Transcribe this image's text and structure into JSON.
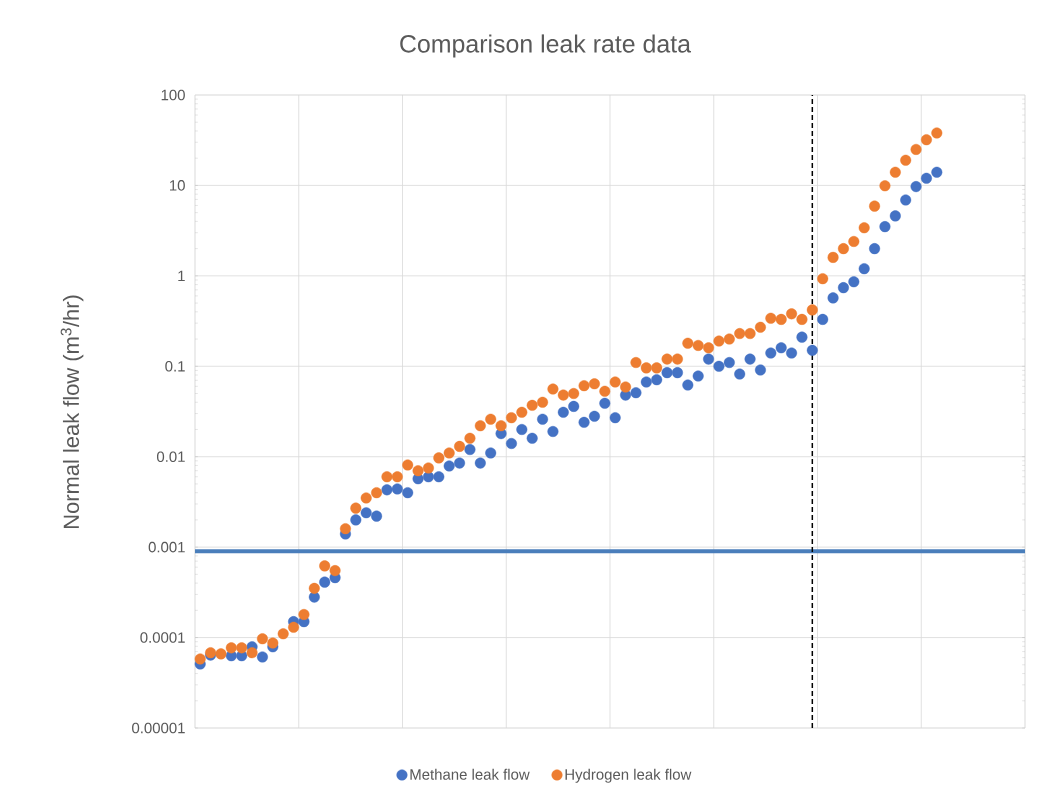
{
  "chart_data": {
    "type": "scatter",
    "title": "Comparison leak rate data",
    "ylabel": "Normal leak flow (m$^{3}$/hr)",
    "categories": [
      null,
      null,
      null,
      null,
      null,
      null,
      null,
      null,
      null,
      null,
      null,
      null,
      null,
      null,
      null,
      null,
      null,
      null,
      null,
      null,
      null,
      null,
      null,
      null,
      null,
      null,
      null,
      null,
      null,
      null,
      null,
      null,
      null,
      null,
      null,
      null,
      null,
      null,
      null,
      null,
      null,
      null,
      null,
      null,
      null,
      null,
      null,
      null,
      null,
      null,
      null,
      null,
      null,
      null,
      null,
      null,
      null,
      null,
      null,
      null,
      null,
      null,
      null,
      null,
      null,
      null,
      null,
      null,
      null,
      null,
      null,
      null,
      null,
      null,
      null,
      null,
      null,
      null,
      null,
      null
    ],
    "series": [
      {
        "name": "Methane leak flow",
        "color": "#4472c4",
        "values": [
          5.1e-05,
          6.4e-05,
          null,
          6.3e-05,
          6.3e-05,
          7.9e-05,
          6.1e-05,
          7.9e-05,
          null,
          0.00015,
          0.00015,
          0.00028,
          0.00041,
          0.00046,
          0.0014,
          0.002,
          0.0024,
          0.0022,
          0.0043,
          0.0044,
          0.004,
          0.0057,
          0.006,
          0.006,
          0.0079,
          0.0085,
          0.012,
          0.0085,
          0.011,
          0.018,
          0.014,
          0.02,
          0.016,
          0.026,
          0.019,
          0.031,
          0.036,
          0.024,
          0.028,
          0.039,
          0.027,
          0.048,
          0.051,
          0.067,
          0.071,
          0.085,
          0.085,
          0.062,
          0.078,
          0.12,
          0.1,
          0.11,
          0.082,
          0.12,
          0.091,
          0.14,
          0.16,
          0.14,
          0.21,
          0.15,
          0.33,
          0.57,
          0.74,
          0.86,
          1.2,
          2.0,
          3.5,
          4.6,
          6.9,
          9.7,
          12,
          14,
          null,
          null,
          null,
          null,
          null,
          null,
          null,
          null
        ]
      },
      {
        "name": "Hydrogen leak flow",
        "color": "#ed7d31",
        "values": [
          5.8e-05,
          6.8e-05,
          6.6e-05,
          7.7e-05,
          7.7e-05,
          6.8e-05,
          9.7e-05,
          8.7e-05,
          0.00011,
          0.00013,
          0.00018,
          0.00035,
          0.00062,
          0.00055,
          0.0016,
          0.0027,
          0.0035,
          0.004,
          0.006,
          0.006,
          0.0081,
          0.007,
          0.0075,
          0.0097,
          0.011,
          0.013,
          0.016,
          0.022,
          0.026,
          0.022,
          0.027,
          0.031,
          0.037,
          0.04,
          0.056,
          0.048,
          0.05,
          0.061,
          0.064,
          0.053,
          0.067,
          0.059,
          0.11,
          0.096,
          0.096,
          0.12,
          0.12,
          0.18,
          0.17,
          0.16,
          0.19,
          0.2,
          0.23,
          0.23,
          0.27,
          0.34,
          0.33,
          0.38,
          0.33,
          0.42,
          0.93,
          1.6,
          2.0,
          2.4,
          3.4,
          5.9,
          9.9,
          14,
          19,
          25,
          32,
          38,
          null,
          null,
          null,
          null,
          null,
          null,
          null,
          null
        ]
      }
    ],
    "ylim": [
      1e-05,
      100
    ],
    "yticks": [
      {
        "value": 1e-05,
        "label": "0.00001"
      },
      {
        "value": 0.0001,
        "label": "0.0001"
      },
      {
        "value": 0.001,
        "label": "0.001"
      },
      {
        "value": 0.01,
        "label": "0.01"
      },
      {
        "value": 0.1,
        "label": "0.1"
      },
      {
        "value": 1,
        "label": "1"
      },
      {
        "value": 10,
        "label": "10"
      },
      {
        "value": 100,
        "label": "100"
      }
    ],
    "log": "y",
    "grid": true,
    "legend": "bottom",
    "marker": "circle",
    "tick_labels": "y",
    "ref_lines": [
      {
        "axis": "y",
        "value": 0.0009,
        "color": "#4a7ebb",
        "line_style": "solid"
      }
    ]
  }
}
